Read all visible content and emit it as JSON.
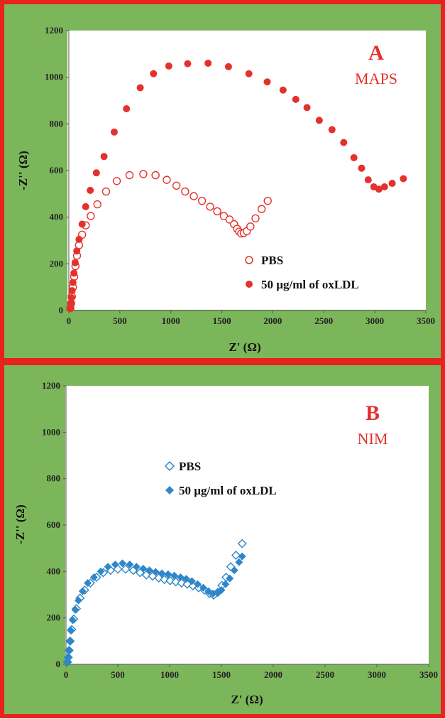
{
  "colors": {
    "frame": "#e8231f",
    "panel_bg": "#7cb65a",
    "plot_bg": "#ffffff",
    "series_red": "#e5312c",
    "series_blue": "#2f86c9",
    "annotation_red": "#e5312c"
  },
  "chart_data": [
    {
      "type": "scatter",
      "title": "A",
      "subtitle": "MAPS",
      "xlabel": "Z' (Ω)",
      "ylabel": "-Z'' (Ω)",
      "xlim": [
        0,
        3500
      ],
      "ylim": [
        0,
        1200
      ],
      "xticks": [
        "0",
        "500",
        "1000",
        "1500",
        "2000",
        "2500",
        "3000",
        "3500"
      ],
      "yticks": [
        "0",
        "200",
        "400",
        "600",
        "800",
        "1000",
        "1200"
      ],
      "grid": false,
      "legend_position": "center-right",
      "series": [
        {
          "name": "PBS",
          "marker": "circle-open",
          "color": "#e5312c",
          "x": [
            15,
            22,
            30,
            40,
            52,
            65,
            80,
            100,
            130,
            165,
            215,
            280,
            365,
            470,
            595,
            730,
            850,
            960,
            1055,
            1140,
            1225,
            1305,
            1385,
            1455,
            1520,
            1575,
            1620,
            1650,
            1670,
            1690,
            1715,
            1745,
            1780,
            1830,
            1890,
            1950
          ],
          "y": [
            10,
            30,
            60,
            100,
            145,
            190,
            235,
            280,
            325,
            365,
            405,
            455,
            510,
            555,
            580,
            585,
            580,
            560,
            535,
            510,
            490,
            470,
            445,
            425,
            405,
            390,
            370,
            350,
            338,
            330,
            332,
            340,
            360,
            395,
            435,
            470
          ]
        },
        {
          "name": "50 µg/ml of oxLDL",
          "marker": "circle-filled",
          "color": "#e5312c",
          "x": [
            12,
            18,
            25,
            32,
            40,
            50,
            62,
            78,
            100,
            130,
            165,
            210,
            270,
            345,
            445,
            565,
            700,
            830,
            980,
            1165,
            1365,
            1565,
            1765,
            1945,
            2100,
            2225,
            2335,
            2455,
            2580,
            2695,
            2795,
            2870,
            2935,
            2990,
            3040,
            3095,
            3170,
            3280
          ],
          "y": [
            10,
            30,
            55,
            85,
            120,
            160,
            205,
            255,
            305,
            370,
            445,
            515,
            590,
            660,
            765,
            865,
            955,
            1015,
            1048,
            1058,
            1060,
            1045,
            1015,
            980,
            945,
            905,
            870,
            815,
            775,
            720,
            655,
            610,
            560,
            530,
            520,
            530,
            545,
            565
          ]
        }
      ]
    },
    {
      "type": "scatter",
      "title": "B",
      "subtitle": "NIM",
      "xlabel": "Z' (Ω)",
      "ylabel": "-Z'' (Ω)",
      "xlim": [
        0,
        3500
      ],
      "ylim": [
        0,
        1200
      ],
      "xticks": [
        "0",
        "500",
        "1000",
        "1500",
        "2000",
        "2500",
        "3000",
        "3500"
      ],
      "yticks": [
        "0",
        "200",
        "400",
        "600",
        "800",
        "1000",
        "1200"
      ],
      "grid": false,
      "legend_position": "upper-left",
      "series": [
        {
          "name": "PBS",
          "marker": "diamond-open",
          "color": "#2f86c9",
          "x": [
            15,
            22,
            30,
            40,
            55,
            75,
            100,
            135,
            180,
            235,
            295,
            360,
            430,
            500,
            575,
            650,
            715,
            775,
            835,
            895,
            950,
            1005,
            1060,
            1115,
            1170,
            1225,
            1280,
            1335,
            1385,
            1425,
            1465,
            1505,
            1545,
            1590,
            1640,
            1700
          ],
          "y": [
            10,
            30,
            60,
            100,
            150,
            195,
            240,
            285,
            320,
            350,
            375,
            395,
            405,
            410,
            410,
            405,
            395,
            385,
            380,
            372,
            365,
            360,
            355,
            350,
            345,
            338,
            330,
            320,
            305,
            298,
            310,
            340,
            375,
            420,
            470,
            520
          ]
        },
        {
          "name": "50 µg/ml of oxLDL",
          "marker": "diamond-filled",
          "color": "#2f86c9",
          "x": [
            12,
            18,
            25,
            35,
            48,
            65,
            90,
            120,
            160,
            210,
            270,
            335,
            405,
            475,
            545,
            615,
            680,
            745,
            805,
            865,
            925,
            985,
            1045,
            1105,
            1160,
            1215,
            1270,
            1325,
            1375,
            1420,
            1460,
            1500,
            1540,
            1580,
            1625,
            1670,
            1700
          ],
          "y": [
            10,
            30,
            60,
            100,
            145,
            190,
            235,
            275,
            315,
            350,
            375,
            400,
            420,
            430,
            435,
            430,
            420,
            412,
            405,
            398,
            392,
            388,
            382,
            375,
            368,
            358,
            345,
            330,
            315,
            305,
            308,
            320,
            345,
            370,
            405,
            440,
            465
          ]
        }
      ]
    }
  ]
}
